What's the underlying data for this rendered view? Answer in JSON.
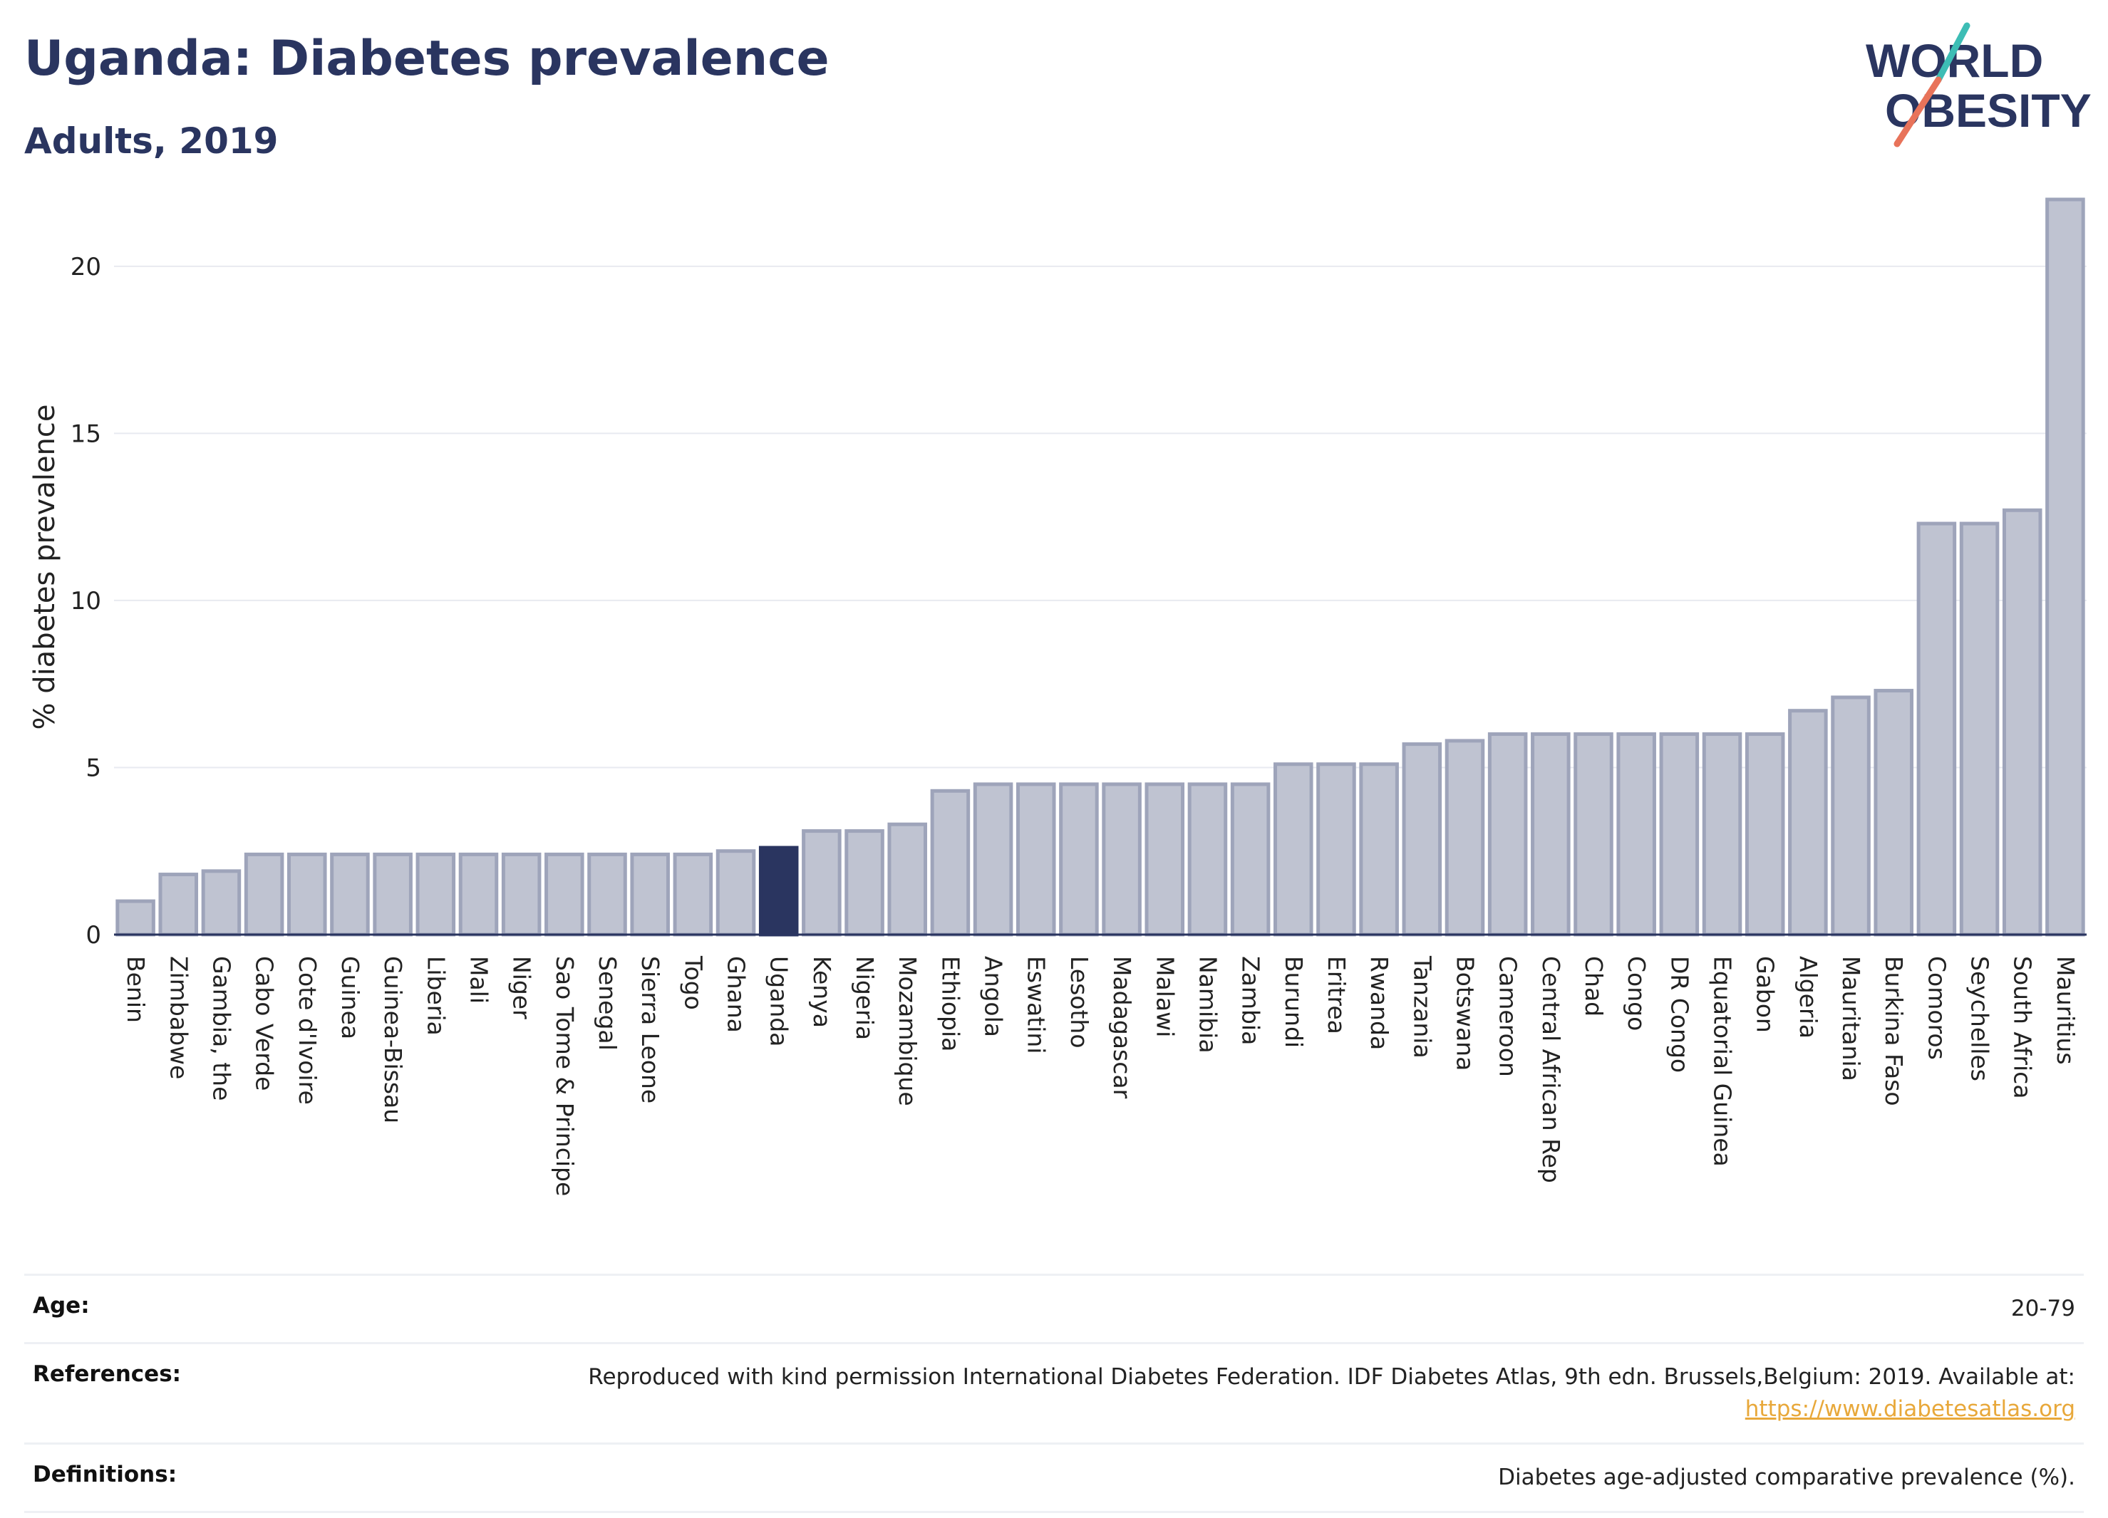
{
  "header": {
    "title": "Uganda: Diabetes prevalence",
    "subtitle": "Adults, 2019"
  },
  "logo": {
    "line1": "WORLD",
    "line2": "OBESITY"
  },
  "colors": {
    "title": "#2a3560",
    "bar_default": "#bfc3d1",
    "bar_default_stroke": "#9ea4ba",
    "bar_highlight": "#2a3560",
    "grid": "#e8eaf0",
    "logo_teal": "#3dbdb5",
    "logo_coral": "#e8735a"
  },
  "chart_data": {
    "type": "bar",
    "ylabel": "% diabetes prevalence",
    "xlabel": "",
    "ylim": [
      0,
      22
    ],
    "yticks": [
      0,
      5,
      10,
      15,
      20
    ],
    "grid": true,
    "highlight": "Uganda",
    "categories": [
      "Benin",
      "Zimbabwe",
      "Gambia, the",
      "Cabo Verde",
      "Cote d'Ivoire",
      "Guinea",
      "Guinea-Bissau",
      "Liberia",
      "Mali",
      "Niger",
      "Sao Tome & Principe",
      "Senegal",
      "Sierra Leone",
      "Togo",
      "Ghana",
      "Uganda",
      "Kenya",
      "Nigeria",
      "Mozambique",
      "Ethiopia",
      "Angola",
      "Eswatini",
      "Lesotho",
      "Madagascar",
      "Malawi",
      "Namibia",
      "Zambia",
      "Burundi",
      "Eritrea",
      "Rwanda",
      "Tanzania",
      "Botswana",
      "Cameroon",
      "Central African Rep",
      "Chad",
      "Congo",
      "DR Congo",
      "Equatorial Guinea",
      "Gabon",
      "Algeria",
      "Mauritania",
      "Burkina Faso",
      "Comoros",
      "Seychelles",
      "South Africa",
      "Mauritius"
    ],
    "values": [
      1.0,
      1.8,
      1.9,
      2.4,
      2.4,
      2.4,
      2.4,
      2.4,
      2.4,
      2.4,
      2.4,
      2.4,
      2.4,
      2.4,
      2.5,
      2.6,
      3.1,
      3.1,
      3.3,
      4.3,
      4.5,
      4.5,
      4.5,
      4.5,
      4.5,
      4.5,
      4.5,
      5.1,
      5.1,
      5.1,
      5.7,
      5.8,
      6.0,
      6.0,
      6.0,
      6.0,
      6.0,
      6.0,
      6.0,
      6.7,
      7.1,
      7.3,
      12.3,
      12.3,
      12.7,
      22.0
    ]
  },
  "info": {
    "rows": [
      {
        "key": "Age:",
        "value": "20-79"
      },
      {
        "key": "References:",
        "value": "Reproduced with kind permission International Diabetes Federation. IDF Diabetes Atlas, 9th edn. Brussels,Belgium: 2019. Available at:",
        "link": "https://www.diabetesatlas.org"
      },
      {
        "key": "Definitions:",
        "value": "Diabetes age-adjusted comparative prevalence (%)."
      }
    ]
  }
}
